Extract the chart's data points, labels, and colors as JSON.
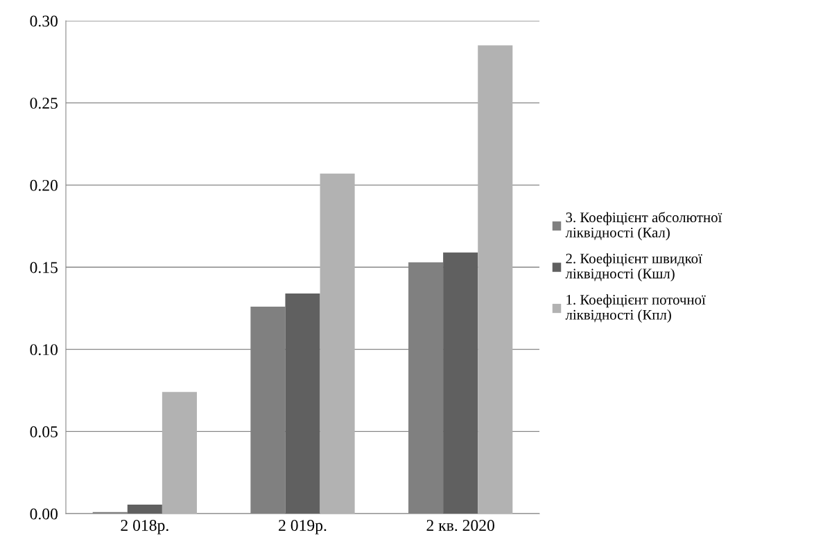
{
  "chart_data": {
    "type": "bar",
    "categories": [
      "2 018р.",
      "2 019р.",
      "2 кв. 2020"
    ],
    "series": [
      {
        "name": "3. Коефіцієнт абсолютної\nліквідності (Кал)",
        "color": "#808080",
        "values": [
          0.001,
          0.126,
          0.153
        ]
      },
      {
        "name": "2. Коефіцієнт швидкої\nліквідності (Кшл)",
        "color": "#606060",
        "values": [
          0.0055,
          0.134,
          0.159
        ]
      },
      {
        "name": "1. Коефіцієнт поточної\nліквідності (Кпл)",
        "color": "#b2b2b2",
        "values": [
          0.074,
          0.207,
          0.285
        ]
      }
    ],
    "ylim": [
      0,
      0.3
    ],
    "yticks": [
      {
        "value": 0,
        "label": "0.00"
      },
      {
        "value": 0.05,
        "label": "0.05"
      },
      {
        "value": 0.1,
        "label": "0.10"
      },
      {
        "value": 0.15,
        "label": "0.15"
      },
      {
        "value": 0.2,
        "label": "0.20"
      },
      {
        "value": 0.25,
        "label": "0.25"
      },
      {
        "value": 0.3,
        "label": "0.30"
      }
    ],
    "grid": "y",
    "legend": "right"
  }
}
